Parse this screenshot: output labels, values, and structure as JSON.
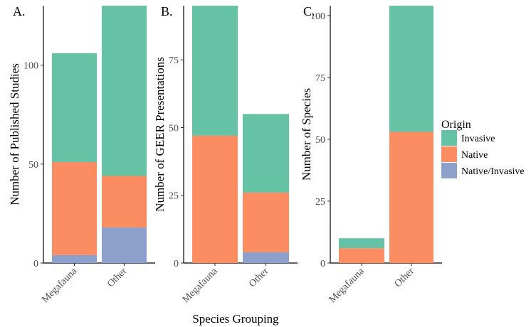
{
  "chart_data": [
    {
      "type": "bar",
      "stacked": true,
      "panel_label": "A.",
      "ylabel": "Number of Published Studies",
      "ylim": [
        0,
        130
      ],
      "yticks": [
        0,
        50,
        100
      ],
      "categories": [
        "Megafauna",
        "Other"
      ],
      "series": [
        {
          "name": "Native/Invasive",
          "values": [
            4,
            18
          ]
        },
        {
          "name": "Native",
          "values": [
            47,
            26
          ]
        },
        {
          "name": "Invasive",
          "values": [
            55,
            86
          ]
        }
      ]
    },
    {
      "type": "bar",
      "stacked": true,
      "panel_label": "B.",
      "ylabel": "Number of GEER Presentations",
      "ylim": [
        0,
        95
      ],
      "yticks": [
        0,
        25,
        50,
        75
      ],
      "categories": [
        "Megafauna",
        "Other"
      ],
      "series": [
        {
          "name": "Native/Invasive",
          "values": [
            0,
            4
          ]
        },
        {
          "name": "Native",
          "values": [
            47,
            22
          ]
        },
        {
          "name": "Invasive",
          "values": [
            48,
            29
          ]
        }
      ]
    },
    {
      "type": "bar",
      "stacked": true,
      "panel_label": "C.",
      "ylabel": "Number of Species",
      "ylim": [
        0,
        104
      ],
      "yticks": [
        0,
        25,
        50,
        75,
        100
      ],
      "categories": [
        "Megafauna",
        "Other"
      ],
      "series": [
        {
          "name": "Native/Invasive",
          "values": [
            0,
            0
          ]
        },
        {
          "name": "Native",
          "values": [
            6,
            53
          ]
        },
        {
          "name": "Invasive",
          "values": [
            4,
            51
          ]
        }
      ]
    }
  ],
  "shared_xlabel": "Species Grouping",
  "legend": {
    "title": "Origin",
    "placement": "right",
    "items": [
      {
        "label": "Invasive",
        "color": "#66c2a5"
      },
      {
        "label": "Native",
        "color": "#fc8d62"
      },
      {
        "label": "Native/Invasive",
        "color": "#8da0cb"
      }
    ]
  },
  "colors": {
    "Invasive": "#66c2a5",
    "Native": "#fc8d62",
    "Native/Invasive": "#8da0cb"
  }
}
